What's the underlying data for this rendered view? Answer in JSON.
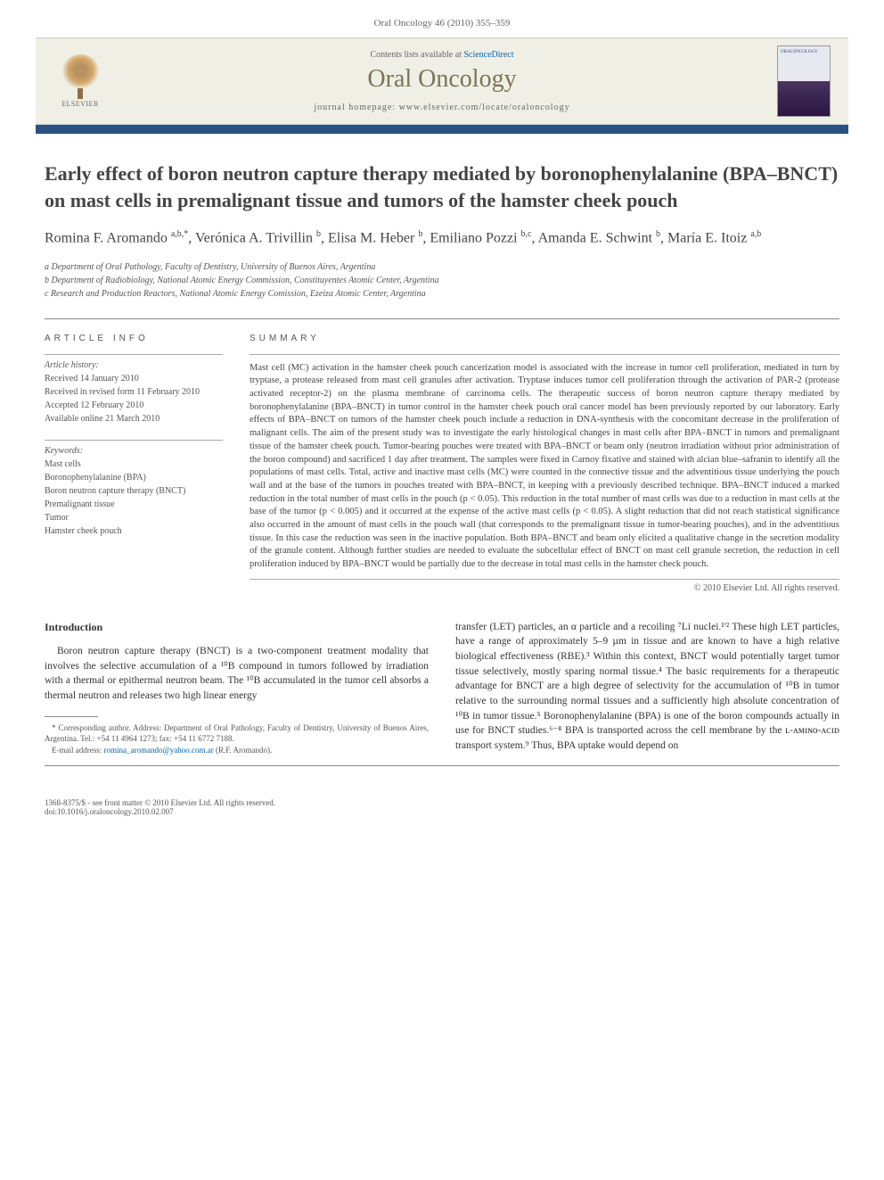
{
  "citation": "Oral Oncology 46 (2010) 355–359",
  "banner": {
    "contents_prefix": "Contents lists available at ",
    "sciencedirect": "ScienceDirect",
    "journal_name": "Oral Oncology",
    "homepage_prefix": "journal homepage: ",
    "homepage_url": "www.elsevier.com/locate/oraloncology",
    "elsevier_label": "ELSEVIER",
    "cover_label": "ORALONCOLOGY"
  },
  "title": "Early effect of boron neutron capture therapy mediated by boronophenylalanine (BPA–BNCT) on mast cells in premalignant tissue and tumors of the hamster cheek pouch",
  "authors_html": "Romina F. Aromando <sup>a,b,*</sup>, Verónica A. Trivillin <sup>b</sup>, Elisa M. Heber <sup>b</sup>, Emiliano Pozzi <sup>b,c</sup>, Amanda E. Schwint <sup>b</sup>, María E. Itoiz <sup>a,b</sup>",
  "affiliations": [
    "a Department of Oral Pathology, Faculty of Dentistry, University of Buenos Aires, Argentina",
    "b Department of Radiobiology, National Atomic Energy Commission, Constituyentes Atomic Center, Argentina",
    "c Research and Production Reactors, National Atomic Energy Comission, Ezeiza Atomic Center, Argentina"
  ],
  "article_info": {
    "heading": "ARTICLE INFO",
    "history_label": "Article history:",
    "history": [
      "Received 14 January 2010",
      "Received in revised form 11 February 2010",
      "Accepted 12 February 2010",
      "Available online 21 March 2010"
    ],
    "keywords_label": "Keywords:",
    "keywords": [
      "Mast cells",
      "Boronophenylalanine (BPA)",
      "Boron neutron capture therapy (BNCT)",
      "Premalignant tissue",
      "Tumor",
      "Hamster cheek pouch"
    ]
  },
  "summary": {
    "heading": "SUMMARY",
    "text": "Mast cell (MC) activation in the hamster cheek pouch cancerization model is associated with the increase in tumor cell proliferation, mediated in turn by tryptase, a protease released from mast cell granules after activation. Tryptase induces tumor cell proliferation through the activation of PAR-2 (protease activated receptor-2) on the plasma membrane of carcinoma cells. The therapeutic success of boron neutron capture therapy mediated by boronophenylalanine (BPA–BNCT) in tumor control in the hamster cheek pouch oral cancer model has been previously reported by our laboratory. Early effects of BPA–BNCT on tumors of the hamster cheek pouch include a reduction in DNA-synthesis with the concomitant decrease in the proliferation of malignant cells. The aim of the present study was to investigate the early histological changes in mast cells after BPA–BNCT in tumors and premalignant tissue of the hamster cheek pouch. Tumor-bearing pouches were treated with BPA–BNCT or beam only (neutron irradiation without prior administration of the boron compound) and sacrificed 1 day after treatment. The samples were fixed in Carnoy fixative and stained with alcian blue–safranin to identify all the populations of mast cells. Total, active and inactive mast cells (MC) were counted in the connective tissue and the adventitious tissue underlying the pouch wall and at the base of the tumors in pouches treated with BPA–BNCT, in keeping with a previously described technique. BPA–BNCT induced a marked reduction in the total number of mast cells in the pouch (p < 0.05). This reduction in the total number of mast cells was due to a reduction in mast cells at the base of the tumor (p < 0.005) and it occurred at the expense of the active mast cells (p < 0.05). A slight reduction that did not reach statistical significance also occurred in the amount of mast cells in the pouch wall (that corresponds to the premalignant tissue in tumor-bearing pouches), and in the adventitious tissue. In this case the reduction was seen in the inactive population. Both BPA–BNCT and beam only elicited a qualitative change in the secretion modality of the granule content. Although further studies are needed to evaluate the subcellular effect of BNCT on mast cell granule secretion, the reduction in cell proliferation induced by BPA–BNCT would be partially due to the decrease in total mast cells in the hamster check pouch.",
    "copyright": "© 2010 Elsevier Ltd. All rights reserved."
  },
  "body": {
    "intro_heading": "Introduction",
    "col1_p1": "Boron neutron capture therapy (BNCT) is a two-component treatment modality that involves the selective accumulation of a ¹⁰B compound in tumors followed by irradiation with a thermal or epithermal neutron beam. The ¹⁰B accumulated in the tumor cell absorbs a thermal neutron and releases two high linear energy",
    "col2_p1": "transfer (LET) particles, an α particle and a recoiling ⁷Li nuclei.¹'² These high LET particles, have a range of approximately 5–9 µm in tissue and are known to have a high relative biological effectiveness (RBE).³ Within this context, BNCT would potentially target tumor tissue selectively, mostly sparing normal tissue.⁴ The basic requirements for a therapeutic advantage for BNCT are a high degree of selectivity for the accumulation of ¹⁰B in tumor relative to the surrounding normal tissues and a sufficiently high absolute concentration of ¹⁰B in tumor tissue.⁵ Boronophenylalanine (BPA) is one of the boron compounds actually in use for BNCT studies.⁶⁻⁸ BPA is transported across the cell membrane by the ʟ-ᴀᴍɪɴᴏ-ᴀᴄɪᴅ transport system.⁹ Thus, BPA uptake would depend on"
  },
  "footnotes": {
    "corresponding": "* Corresponding author. Address: Department of Oral Pathology, Faculty of Dentistry, University of Buenos Aires, Argentina. Tel.: +54 11 4964 1273; fax: +54 11 6772 7188.",
    "email_label": "E-mail address: ",
    "email": "romina_aromando@yahoo.com.ar",
    "email_suffix": " (R.F. Aromando)."
  },
  "footer": {
    "left_line1": "1368-8375/$ - see front matter © 2010 Elsevier Ltd. All rights reserved.",
    "left_line2": "doi:10.1016/j.oraloncology.2010.02.007"
  },
  "colors": {
    "accent_bar": "#2a5080",
    "banner_bg": "#f0efe6",
    "journal_name": "#7a7555",
    "link": "#0066aa"
  }
}
